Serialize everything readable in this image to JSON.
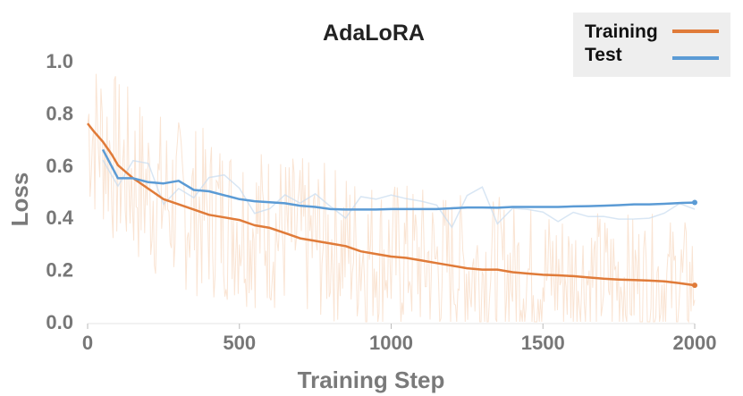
{
  "chart_data": {
    "type": "line",
    "title": "AdaLoRA",
    "xlabel": "Training Step",
    "ylabel": "Loss",
    "xlim": [
      0,
      2000
    ],
    "ylim": [
      0,
      1.0
    ],
    "xticks": [
      "0",
      "500",
      "1000",
      "1500",
      "2000"
    ],
    "yticks": [
      "0.0",
      "0.2",
      "0.4",
      "0.6",
      "0.8",
      "1.0"
    ],
    "grid": false,
    "legend_position": "top-right",
    "series": [
      {
        "name": "Training",
        "color": "#e07b39",
        "x": [
          0,
          20,
          50,
          80,
          100,
          150,
          200,
          250,
          300,
          350,
          400,
          450,
          500,
          550,
          600,
          650,
          700,
          750,
          800,
          850,
          900,
          950,
          1000,
          1050,
          1100,
          1150,
          1200,
          1250,
          1300,
          1350,
          1400,
          1450,
          1500,
          1550,
          1600,
          1650,
          1700,
          1750,
          1800,
          1850,
          1900,
          1950,
          2000
        ],
        "y": [
          0.76,
          0.73,
          0.69,
          0.64,
          0.6,
          0.55,
          0.51,
          0.47,
          0.45,
          0.43,
          0.41,
          0.4,
          0.39,
          0.37,
          0.36,
          0.34,
          0.32,
          0.31,
          0.3,
          0.29,
          0.27,
          0.26,
          0.25,
          0.245,
          0.235,
          0.225,
          0.215,
          0.205,
          0.2,
          0.2,
          0.19,
          0.185,
          0.18,
          0.178,
          0.175,
          0.17,
          0.165,
          0.162,
          0.16,
          0.158,
          0.155,
          0.148,
          0.14
        ]
      },
      {
        "name": "Test",
        "color": "#5b9bd5",
        "x": [
          50,
          100,
          150,
          200,
          250,
          300,
          350,
          400,
          450,
          500,
          550,
          600,
          650,
          700,
          750,
          800,
          850,
          900,
          950,
          1000,
          1050,
          1100,
          1150,
          1200,
          1250,
          1300,
          1350,
          1400,
          1450,
          1500,
          1550,
          1600,
          1650,
          1700,
          1750,
          1800,
          1850,
          1900,
          1950,
          2000
        ],
        "y": [
          0.66,
          0.55,
          0.55,
          0.535,
          0.53,
          0.54,
          0.505,
          0.5,
          0.485,
          0.47,
          0.462,
          0.458,
          0.454,
          0.445,
          0.44,
          0.432,
          0.43,
          0.43,
          0.43,
          0.432,
          0.432,
          0.432,
          0.432,
          0.435,
          0.438,
          0.438,
          0.437,
          0.44,
          0.44,
          0.44,
          0.44,
          0.442,
          0.443,
          0.445,
          0.447,
          0.45,
          0.45,
          0.452,
          0.455,
          0.457
        ]
      }
    ]
  }
}
